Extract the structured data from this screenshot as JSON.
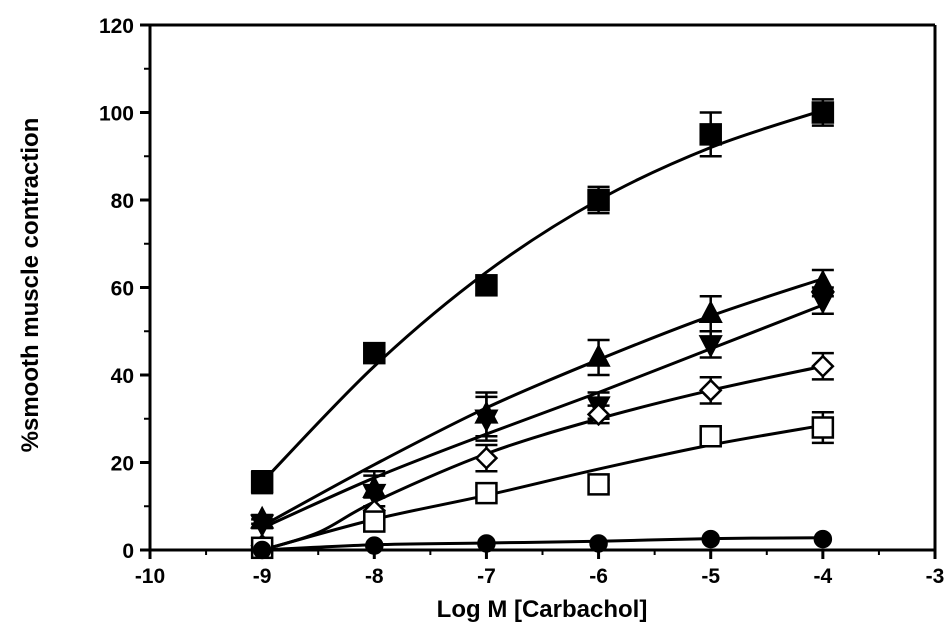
{
  "chart_data": {
    "type": "scatter",
    "title": "",
    "xlabel": "Log M [Carbachol]",
    "ylabel": "%smooth muscle contraction",
    "xlim": [
      -10,
      -3
    ],
    "ylim": [
      0,
      120
    ],
    "xticks": [
      -10,
      -9,
      -8,
      -7,
      -6,
      -5,
      -4,
      -3
    ],
    "yticks": [
      0,
      20,
      40,
      60,
      80,
      100,
      120
    ],
    "grid": false,
    "legend": "none",
    "x": [
      -9,
      -8,
      -7,
      -6,
      -5,
      -4
    ],
    "series": [
      {
        "marker": "filled-square",
        "color": "#000000",
        "values": [
          15.5,
          45,
          60.5,
          80,
          95,
          100
        ],
        "errors": [
          2.5,
          2,
          2,
          3,
          5,
          3
        ],
        "fit": [
          [
            -9,
            15.5
          ],
          [
            -8,
            42
          ],
          [
            -7,
            63.5
          ],
          [
            -6,
            80
          ],
          [
            -5,
            92
          ],
          [
            -4,
            100.5
          ]
        ]
      },
      {
        "marker": "filled-triangle-up",
        "color": "#000000",
        "values": [
          7,
          14,
          31,
          44,
          54,
          61
        ],
        "errors": [
          1,
          4,
          5,
          4,
          4,
          3
        ],
        "fit": [
          [
            -9,
            5.5
          ],
          [
            -8,
            19.5
          ],
          [
            -7,
            32.5
          ],
          [
            -6,
            43.5
          ],
          [
            -5,
            53.5
          ],
          [
            -4,
            62
          ]
        ]
      },
      {
        "marker": "filled-triangle-down",
        "color": "#000000",
        "values": [
          6,
          13,
          30,
          33,
          47,
          57
        ],
        "errors": [
          1,
          4,
          5,
          3,
          3,
          3
        ],
        "fit": [
          [
            -9,
            5
          ],
          [
            -8,
            16.5
          ],
          [
            -7,
            26.5
          ],
          [
            -6,
            36
          ],
          [
            -5,
            46
          ],
          [
            -4,
            56
          ]
        ]
      },
      {
        "marker": "open-diamond",
        "color": "#000000",
        "values": [
          1,
          9,
          21,
          31,
          36.5,
          42
        ],
        "errors": [
          1,
          3,
          3,
          2,
          3,
          3
        ],
        "fit": [
          [
            -9,
            0
          ],
          [
            -8.5,
            4
          ],
          [
            -8,
            11
          ],
          [
            -7,
            22
          ],
          [
            -6,
            30
          ],
          [
            -5,
            36.5
          ],
          [
            -4,
            42
          ]
        ]
      },
      {
        "marker": "open-square",
        "color": "#000000",
        "values": [
          0.5,
          6.5,
          13,
          15,
          26,
          28
        ],
        "errors": [
          1,
          2,
          1.5,
          1,
          1.5,
          3.5
        ],
        "fit": [
          [
            -9,
            0
          ],
          [
            -8,
            7
          ],
          [
            -7,
            12.5
          ],
          [
            -6,
            18.5
          ],
          [
            -5,
            24
          ],
          [
            -4,
            28.5
          ]
        ]
      },
      {
        "marker": "filled-circle",
        "color": "#000000",
        "values": [
          0,
          1,
          1.5,
          1.5,
          2.5,
          2.5
        ],
        "errors": [
          0.5,
          0.5,
          0.5,
          0.5,
          0.5,
          0.5
        ],
        "fit": [
          [
            -9,
            0
          ],
          [
            -8,
            1.2
          ],
          [
            -7,
            1.6
          ],
          [
            -6,
            2
          ],
          [
            -5,
            2.6
          ],
          [
            -4,
            2.8
          ]
        ]
      }
    ]
  }
}
